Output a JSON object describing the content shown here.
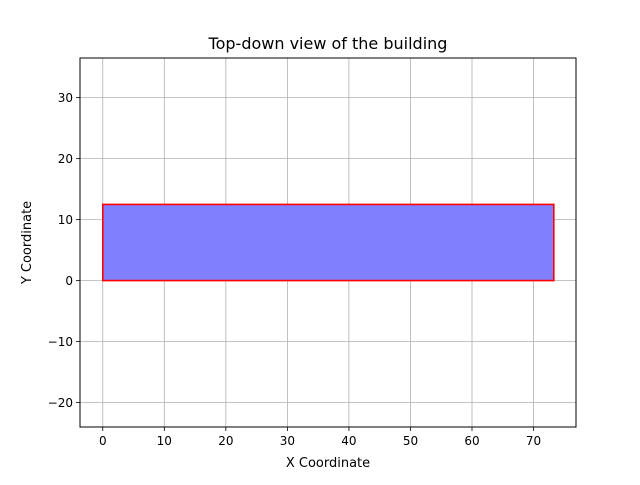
{
  "chart_data": {
    "type": "area",
    "title": "Top-down view of the building",
    "xlabel": "X Coordinate",
    "ylabel": "Y Coordinate",
    "xlim": [
      -3.7,
      76.9
    ],
    "ylim": [
      -24,
      36.5
    ],
    "xticks": [
      0,
      10,
      20,
      30,
      40,
      50,
      60,
      70
    ],
    "yticks": [
      -20,
      -10,
      0,
      10,
      20,
      30
    ],
    "grid": true,
    "legend": "none",
    "series": [
      {
        "shape": "polygon",
        "x": [
          0,
          73.3,
          73.3,
          0,
          0
        ],
        "y": [
          0,
          0,
          12.5,
          12.5,
          0
        ],
        "fill_color": "#8080ff",
        "edge_color": "#ff0000"
      }
    ]
  }
}
